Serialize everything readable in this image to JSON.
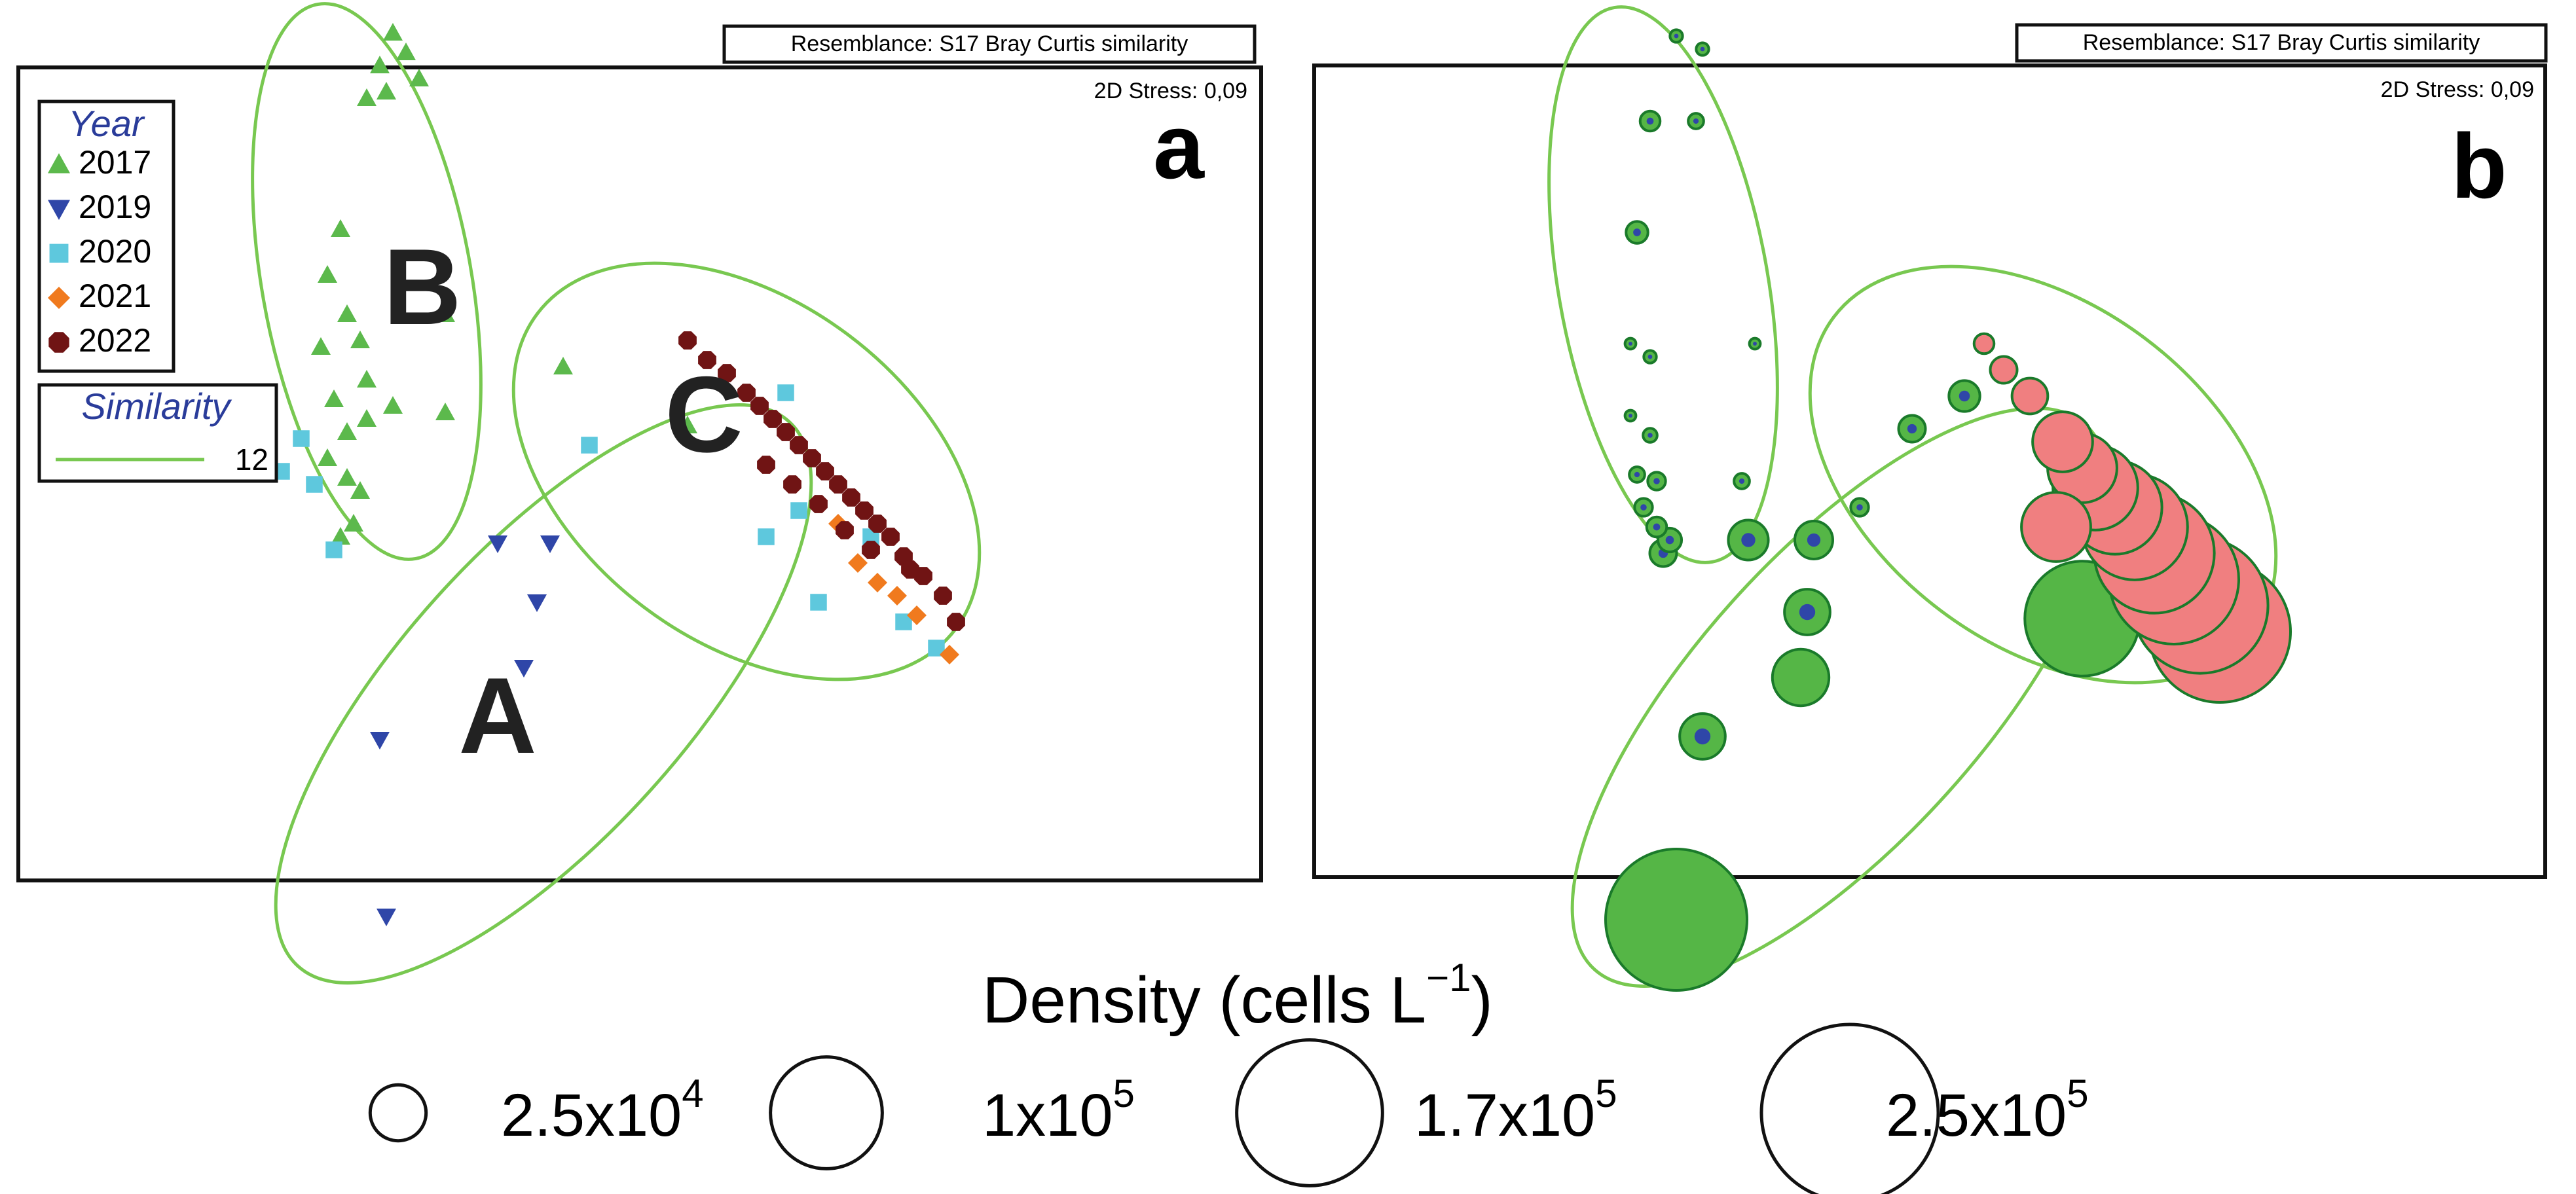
{
  "panel_a": {
    "label": "a",
    "resemblance": "Resemblance: S17 Bray Curtis similarity",
    "stress": "2D Stress: 0,09",
    "legend_title": "Year",
    "legend_items": [
      "2017",
      "2019",
      "2020",
      "2021",
      "2022"
    ],
    "similarity_title": "Similarity",
    "similarity_value": "12",
    "group_labels": [
      "A",
      "B",
      "C"
    ]
  },
  "panel_b": {
    "label": "b",
    "resemblance": "Resemblance: S17 Bray Curtis similarity",
    "stress": "2D Stress: 0,09"
  },
  "density_legend": {
    "title_main": "Density (cells L",
    "title_sup": "−1",
    "title_end": ")",
    "items": [
      {
        "mantissa": "2.5x10",
        "exp": "4",
        "value": 25000
      },
      {
        "mantissa": "1x10",
        "exp": "5",
        "value": 100000
      },
      {
        "mantissa": "1.7x10",
        "exp": "5",
        "value": 170000
      },
      {
        "mantissa": "2.5x10",
        "exp": "5",
        "value": 250000
      }
    ]
  },
  "colors": {
    "y2017": "#5cb94c",
    "y2019": "#2f46a8",
    "y2020": "#5ec8dd",
    "y2021": "#f07a1e",
    "y2022": "#701414",
    "ellipse": "#78c850",
    "bubble_green": "#55b646",
    "bubble_pink": "#f07f80",
    "bubble_edge": "#1a7a2a",
    "legend_text_blue": "#2a3c9a"
  },
  "chart_data": [
    {
      "type": "scatter",
      "title": "",
      "xlabel": "",
      "ylabel": "",
      "grid": false,
      "legend_position": "top-left",
      "series": [
        {
          "name": "2017",
          "marker": "triangle-up",
          "points": [
            [
              0.6,
              0.05
            ],
            [
              0.58,
              0.1
            ],
            [
              0.62,
              0.08
            ],
            [
              0.64,
              0.12
            ],
            [
              0.56,
              0.15
            ],
            [
              0.59,
              0.14
            ],
            [
              0.52,
              0.35
            ],
            [
              0.5,
              0.42
            ],
            [
              0.53,
              0.48
            ],
            [
              0.49,
              0.53
            ],
            [
              0.55,
              0.52
            ],
            [
              0.56,
              0.58
            ],
            [
              0.51,
              0.61
            ],
            [
              0.56,
              0.64
            ],
            [
              0.53,
              0.66
            ],
            [
              0.5,
              0.7
            ],
            [
              0.53,
              0.73
            ],
            [
              0.55,
              0.75
            ],
            [
              0.6,
              0.62
            ],
            [
              0.68,
              0.48
            ],
            [
              0.68,
              0.63
            ],
            [
              0.54,
              0.8
            ],
            [
              0.52,
              0.82
            ],
            [
              0.86,
              0.56
            ],
            [
              1.05,
              0.65
            ]
          ]
        },
        {
          "name": "2019",
          "marker": "triangle-down",
          "points": [
            [
              0.76,
              0.83
            ],
            [
              0.84,
              0.83
            ],
            [
              0.82,
              0.92
            ],
            [
              0.8,
              1.02
            ],
            [
              0.58,
              1.13
            ],
            [
              0.59,
              1.4
            ]
          ]
        },
        {
          "name": "2020",
          "marker": "square",
          "points": [
            [
              0.4,
              0.67
            ],
            [
              0.46,
              0.67
            ],
            [
              0.43,
              0.72
            ],
            [
              0.48,
              0.74
            ],
            [
              0.51,
              0.84
            ],
            [
              0.9,
              0.68
            ],
            [
              1.2,
              0.6
            ],
            [
              1.22,
              0.78
            ],
            [
              1.17,
              0.82
            ],
            [
              1.33,
              0.82
            ],
            [
              1.25,
              0.92
            ],
            [
              1.38,
              0.95
            ],
            [
              1.43,
              0.99
            ]
          ]
        },
        {
          "name": "2021",
          "marker": "diamond",
          "points": [
            [
              1.28,
              0.8
            ],
            [
              1.31,
              0.86
            ],
            [
              1.34,
              0.89
            ],
            [
              1.37,
              0.91
            ],
            [
              1.4,
              0.94
            ],
            [
              1.45,
              1.0
            ]
          ]
        },
        {
          "name": "2022",
          "marker": "circle",
          "points": [
            [
              1.05,
              0.52
            ],
            [
              1.08,
              0.55
            ],
            [
              1.11,
              0.57
            ],
            [
              1.14,
              0.6
            ],
            [
              1.16,
              0.62
            ],
            [
              1.18,
              0.64
            ],
            [
              1.2,
              0.66
            ],
            [
              1.22,
              0.68
            ],
            [
              1.24,
              0.7
            ],
            [
              1.26,
              0.72
            ],
            [
              1.28,
              0.74
            ],
            [
              1.3,
              0.76
            ],
            [
              1.32,
              0.78
            ],
            [
              1.34,
              0.8
            ],
            [
              1.36,
              0.82
            ],
            [
              1.38,
              0.85
            ],
            [
              1.41,
              0.88
            ],
            [
              1.44,
              0.91
            ],
            [
              1.46,
              0.95
            ],
            [
              1.17,
              0.71
            ],
            [
              1.21,
              0.74
            ],
            [
              1.25,
              0.77
            ],
            [
              1.29,
              0.81
            ],
            [
              1.33,
              0.84
            ],
            [
              1.39,
              0.87
            ]
          ]
        }
      ],
      "groups": [
        {
          "label": "A",
          "cx": 0.83,
          "cy": 1.06,
          "rx": 0.56,
          "ry": 0.22,
          "rotation": -48
        },
        {
          "label": "B",
          "cx": 0.56,
          "cy": 0.43,
          "rx": 0.43,
          "ry": 0.16,
          "rotation": 80
        },
        {
          "label": "C",
          "cx": 1.14,
          "cy": 0.72,
          "rx": 0.4,
          "ry": 0.26,
          "rotation": 37
        }
      ]
    },
    {
      "type": "scatter",
      "title": "",
      "xlabel": "",
      "ylabel": "",
      "grid": false,
      "size_variable": "Density (cells L-1)",
      "groups": [
        {
          "label": "",
          "cx": 0.83,
          "cy": 1.06,
          "rx": 0.56,
          "ry": 0.22,
          "rotation": -48
        },
        {
          "label": "",
          "cx": 0.56,
          "cy": 0.43,
          "rx": 0.43,
          "ry": 0.16,
          "rotation": 80
        },
        {
          "label": "",
          "cx": 1.14,
          "cy": 0.72,
          "rx": 0.4,
          "ry": 0.26,
          "rotation": 37
        }
      ],
      "series": [
        {
          "name": "",
          "color": "green",
          "points": [
            {
              "x": 0.58,
              "y": 0.05,
              "d": 2000
            },
            {
              "x": 0.62,
              "y": 0.07,
              "d": 2000
            },
            {
              "x": 0.54,
              "y": 0.18,
              "d": 5000
            },
            {
              "x": 0.61,
              "y": 0.18,
              "d": 3000
            },
            {
              "x": 0.52,
              "y": 0.35,
              "d": 6000
            },
            {
              "x": 0.51,
              "y": 0.52,
              "d": 1500
            },
            {
              "x": 0.54,
              "y": 0.54,
              "d": 2000
            },
            {
              "x": 0.7,
              "y": 0.52,
              "d": 1500
            },
            {
              "x": 0.51,
              "y": 0.63,
              "d": 1500
            },
            {
              "x": 0.54,
              "y": 0.66,
              "d": 2500
            },
            {
              "x": 0.52,
              "y": 0.72,
              "d": 3000
            },
            {
              "x": 0.55,
              "y": 0.73,
              "d": 4000
            },
            {
              "x": 0.53,
              "y": 0.77,
              "d": 4000
            },
            {
              "x": 0.55,
              "y": 0.8,
              "d": 5000
            },
            {
              "x": 0.57,
              "y": 0.82,
              "d": 7000
            },
            {
              "x": 0.56,
              "y": 0.84,
              "d": 9000
            },
            {
              "x": 0.68,
              "y": 0.73,
              "d": 3000
            },
            {
              "x": 0.94,
              "y": 0.65,
              "d": 9000
            },
            {
              "x": 1.02,
              "y": 0.6,
              "d": 12000
            },
            {
              "x": 0.86,
              "y": 0.77,
              "d": 4000
            },
            {
              "x": 0.69,
              "y": 0.82,
              "d": 20000
            },
            {
              "x": 0.79,
              "y": 0.82,
              "d": 18000
            },
            {
              "x": 0.78,
              "y": 0.93,
              "d": 26000
            },
            {
              "x": 0.77,
              "y": 1.03,
              "d": 40000
            },
            {
              "x": 0.62,
              "y": 1.12,
              "d": 26000
            },
            {
              "x": 1.2,
              "y": 0.94,
              "d": 165000
            },
            {
              "x": 0.58,
              "y": 1.4,
              "d": 250000
            }
          ]
        },
        {
          "name": "",
          "color": "pink",
          "points": [
            {
              "x": 1.05,
              "y": 0.52,
              "d": 5000
            },
            {
              "x": 1.08,
              "y": 0.56,
              "d": 9000
            },
            {
              "x": 1.12,
              "y": 0.6,
              "d": 16000
            },
            {
              "x": 1.17,
              "y": 0.67,
              "d": 45000
            },
            {
              "x": 1.2,
              "y": 0.71,
              "d": 60000
            },
            {
              "x": 1.22,
              "y": 0.74,
              "d": 90000
            },
            {
              "x": 1.25,
              "y": 0.77,
              "d": 110000
            },
            {
              "x": 1.28,
              "y": 0.8,
              "d": 140000
            },
            {
              "x": 1.31,
              "y": 0.84,
              "d": 180000
            },
            {
              "x": 1.34,
              "y": 0.88,
              "d": 210000
            },
            {
              "x": 1.38,
              "y": 0.92,
              "d": 230000
            },
            {
              "x": 1.41,
              "y": 0.96,
              "d": 250000
            },
            {
              "x": 1.16,
              "y": 0.8,
              "d": 60000
            }
          ]
        }
      ]
    }
  ]
}
